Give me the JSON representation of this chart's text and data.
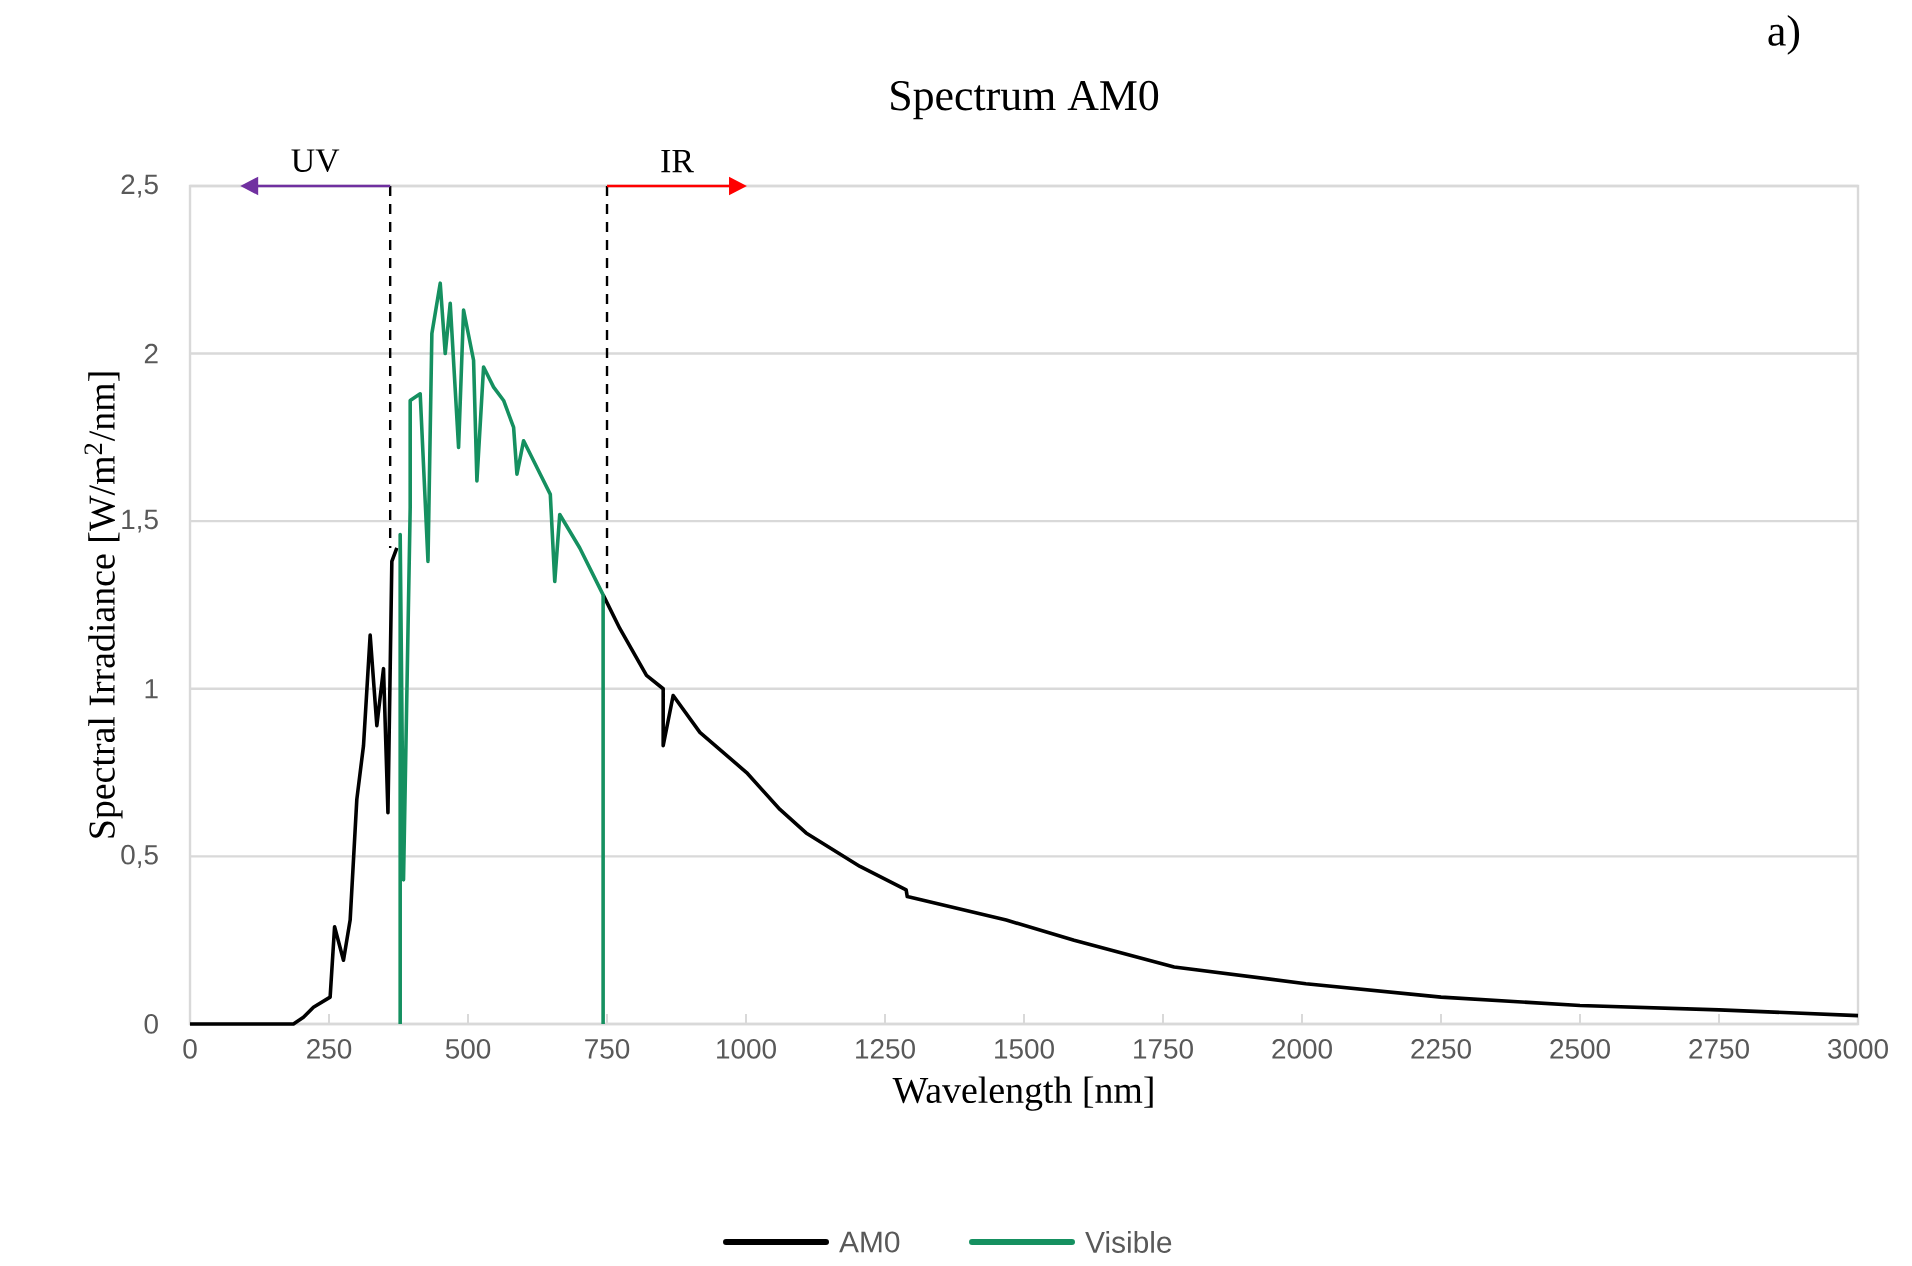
{
  "chart_data": {
    "type": "line",
    "title": "Spectrum AM0",
    "xlabel": "Wavelength [nm]",
    "ylabel": "Spectral Irradiance [W/m$^{2}$/nm]",
    "annotations": [
      "a)"
    ],
    "xlim": [
      0,
      3000
    ],
    "ylim": [
      0,
      2.5
    ],
    "xticks": [
      0,
      250,
      500,
      750,
      1000,
      1250,
      1500,
      1750,
      2000,
      2250,
      2500,
      2750,
      3000
    ],
    "yticks": [
      0,
      {
        "value": 0.5,
        "label": "0,5"
      },
      1,
      {
        "value": 1.5,
        "label": "1,5"
      },
      2,
      {
        "value": 2.5,
        "label": "2,5"
      }
    ],
    "grid": "y",
    "legend": "bottom",
    "series": [
      {
        "name": "AM0",
        "color": "#000000",
        "x": [
          0,
          186,
          204,
          222,
          252,
          260,
          276,
          288,
          300,
          312,
          324,
          336,
          348,
          356,
          363,
          372,
          560,
          743,
          773,
          821,
          851,
          851,
          869,
          917,
          1001,
          1061,
          1108,
          1205,
          1288,
          1290,
          1468,
          1590,
          1770,
          2007,
          2250,
          2500,
          2750,
          3000
        ],
        "values": [
          0,
          0,
          0.02,
          0.05,
          0.08,
          0.29,
          0.19,
          0.31,
          0.67,
          0.83,
          1.16,
          0.89,
          1.06,
          0.63,
          1.38,
          1.42,
          null,
          1.28,
          1.18,
          1.04,
          1.0,
          0.83,
          0.98,
          0.87,
          0.75,
          0.64,
          0.57,
          0.47,
          0.4,
          0.38,
          0.31,
          0.25,
          0.17,
          0.12,
          0.08,
          0.055,
          0.042,
          0.025
        ]
      },
      {
        "name": "Visible",
        "x": [
          378,
          378,
          384,
          396,
          396,
          414,
          428,
          435,
          450,
          459,
          468,
          483,
          492,
          510,
          516,
          528,
          546,
          564,
          582,
          588,
          600,
          630,
          648,
          656,
          665,
          701,
          737,
          743,
          743
        ],
        "values": [
          0,
          1.46,
          0.43,
          1.54,
          1.86,
          1.88,
          1.38,
          2.06,
          2.21,
          2.0,
          2.15,
          1.72,
          2.13,
          1.98,
          1.62,
          1.96,
          1.9,
          1.86,
          1.78,
          1.64,
          1.74,
          1.64,
          1.58,
          1.32,
          1.52,
          1.42,
          1.3,
          1.28,
          0
        ],
        "color": "#159060"
      }
    ],
    "ref_lines": [
      {
        "axis": "x",
        "value": 360,
        "label": "UV",
        "color": "#000000",
        "line_style": "dashed"
      },
      {
        "axis": "x",
        "value": 750,
        "label": "IR",
        "color": "#000000",
        "line_style": "dashed"
      }
    ]
  }
}
